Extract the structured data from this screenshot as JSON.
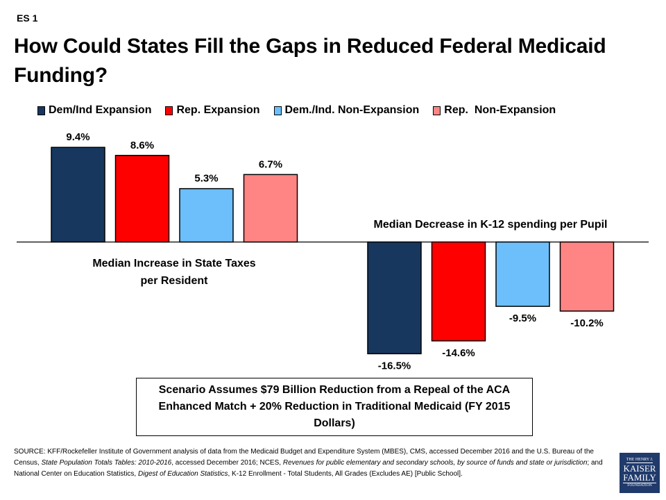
{
  "slide": {
    "tag": "ES 1",
    "title": "How Could States Fill the Gaps in Reduced Federal Medicaid Funding?"
  },
  "colors": {
    "dem_ind_expansion": "#17375E",
    "rep_expansion": "#FF0000",
    "dem_ind_non_expansion": "#6CBFFB",
    "rep_non_expansion": "#FF8585"
  },
  "chart_data": {
    "type": "bar",
    "title": "How Could States Fill the Gaps in Reduced Federal Medicaid Funding?",
    "legend": [
      "Dem/Ind Expansion",
      "Rep. Expansion",
      "Dem./Ind. Non-Expansion",
      "Rep.  Non-Expansion"
    ],
    "legend_position": "top",
    "grid": false,
    "categories": [
      "Median Increase in State Taxes per Resident",
      "Median Decrease in K-12 spending per Pupil"
    ],
    "series": [
      {
        "name": "Dem/Ind Expansion",
        "values": [
          9.4,
          -16.5
        ],
        "labels": [
          "9.4%",
          "-16.5%"
        ]
      },
      {
        "name": "Rep. Expansion",
        "values": [
          8.6,
          -14.6
        ],
        "labels": [
          "8.6%",
          "-14.6%"
        ]
      },
      {
        "name": "Dem./Ind. Non-Expansion",
        "values": [
          5.3,
          -9.5
        ],
        "labels": [
          "5.3%",
          "-9.5%"
        ]
      },
      {
        "name": "Rep.  Non-Expansion",
        "values": [
          6.7,
          -10.2
        ],
        "labels": [
          "6.7%",
          "-10.2%"
        ]
      }
    ],
    "group_labels": [
      {
        "lines": [
          "Median Increase in State Taxes",
          "per Resident"
        ]
      },
      {
        "lines": [
          "Median Decrease in K-12 spending per Pupil"
        ]
      }
    ],
    "xlabel": "",
    "ylabel": "",
    "unit": "%"
  },
  "note": "Scenario Assumes $79 Billion Reduction from a Repeal of the ACA Enhanced Match + 20% Reduction in Traditional  Medicaid (FY 2015 Dollars)",
  "source": {
    "part1": "SOURCE:  KFF/Rockefeller Institute of Government  analysis of data from the  Medicaid Budget and Expenditure System (MBES), CMS, accessed December  2016 and the U.S.  Bureau of the Census, ",
    "italic1": "State  Population Totals Tables: 2010-2016",
    "part2": ", accessed December  2016; NCES, ",
    "italic2": "Revenues for public elementary  and secondary schools, by source  of funds and state or jurisdiction",
    "part3": ";  and National Center on Education Statistics, ",
    "italic3": "Digest of Education  Statistics",
    "part4": ",  K-12 Enrollment - Total Students,  All Grades (Excludes AE)  [Public School]."
  },
  "logo": {
    "line1": "THE HENRY J.",
    "line2": "KAISER",
    "line3": "FAMILY",
    "line4": "FOUNDATION"
  }
}
